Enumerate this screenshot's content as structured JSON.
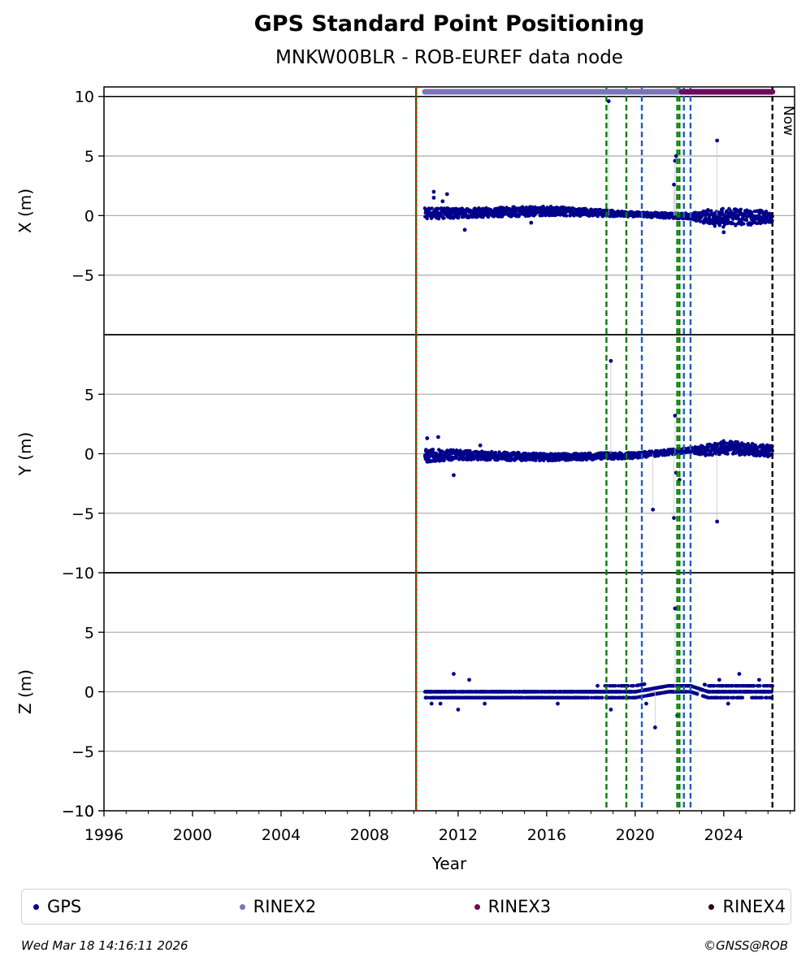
{
  "header": {
    "title": "GPS Standard Point Positioning",
    "subtitle": "MNKW00BLR - ROB-EUREF data node"
  },
  "footer": {
    "timestamp": "Wed Mar 18 14:16:11 2026",
    "copyright": "©GNSS@ROB"
  },
  "legend": {
    "items": [
      {
        "label": "GPS",
        "color": "#00008b"
      },
      {
        "label": "RINEX2",
        "color": "#7a74b8"
      },
      {
        "label": "RINEX3",
        "color": "#6b0a5e"
      },
      {
        "label": "RINEX4",
        "color": "#2a0520"
      }
    ]
  },
  "chart_data": {
    "type": "scatter",
    "xlabel": "Year",
    "xlim": [
      1996,
      2027.2
    ],
    "x_ticks": [
      1996,
      2000,
      2004,
      2008,
      2012,
      2016,
      2020,
      2024
    ],
    "panels": [
      {
        "ylabel": "X (m)",
        "ylim": [
          -10,
          10.8
        ],
        "yticks": [
          10,
          5,
          0,
          -5
        ],
        "band_low": [
          [
            2010.5,
            -0.3
          ],
          [
            2012,
            -0.2
          ],
          [
            2016,
            0.0
          ],
          [
            2020,
            -0.1
          ],
          [
            2022.5,
            -0.3
          ],
          [
            2023.3,
            -0.8
          ],
          [
            2024,
            -1.0
          ],
          [
            2026.2,
            -0.6
          ]
        ],
        "band_high": [
          [
            2010.5,
            0.7
          ],
          [
            2012,
            0.6
          ],
          [
            2016,
            0.8
          ],
          [
            2020,
            0.3
          ],
          [
            2022.5,
            0.2
          ],
          [
            2023.3,
            0.5
          ],
          [
            2024,
            0.6
          ],
          [
            2026.2,
            0.4
          ]
        ],
        "outliers": [
          [
            2010.9,
            2.0
          ],
          [
            2010.9,
            1.5
          ],
          [
            2011.5,
            1.8
          ],
          [
            2011.3,
            1.2
          ],
          [
            2012.3,
            -1.2
          ],
          [
            2018.8,
            9.6
          ],
          [
            2021.8,
            4.6
          ],
          [
            2021.85,
            5.0
          ],
          [
            2021.75,
            2.6
          ],
          [
            2023.7,
            6.3
          ],
          [
            2024.0,
            -1.4
          ],
          [
            2015.3,
            -0.6
          ]
        ]
      },
      {
        "ylabel": "Y (m)",
        "ylim": [
          -10,
          10
        ],
        "yticks": [
          -10,
          5,
          0,
          -5
        ],
        "band_low": [
          [
            2010.5,
            -0.7
          ],
          [
            2012,
            -0.5
          ],
          [
            2016,
            -0.6
          ],
          [
            2020,
            -0.4
          ],
          [
            2022.5,
            0.1
          ],
          [
            2023.3,
            -0.2
          ],
          [
            2024,
            0.0
          ],
          [
            2026.2,
            -0.3
          ]
        ],
        "band_high": [
          [
            2010.5,
            0.4
          ],
          [
            2012,
            0.3
          ],
          [
            2016,
            0.0
          ],
          [
            2020,
            0.1
          ],
          [
            2022.5,
            0.5
          ],
          [
            2023.3,
            0.8
          ],
          [
            2024,
            1.1
          ],
          [
            2026.2,
            0.7
          ]
        ],
        "outliers": [
          [
            2010.6,
            1.3
          ],
          [
            2011.1,
            1.4
          ],
          [
            2011.8,
            -1.8
          ],
          [
            2013,
            0.7
          ],
          [
            2018.9,
            7.8
          ],
          [
            2020.8,
            -4.7
          ],
          [
            2021.75,
            -5.4
          ],
          [
            2021.8,
            3.2
          ],
          [
            2021.85,
            -1.6
          ],
          [
            2022.0,
            -2.2
          ],
          [
            2023.7,
            -5.7
          ]
        ]
      },
      {
        "ylabel": "Z (m)",
        "ylim": [
          -10,
          10
        ],
        "yticks": [
          -10,
          5,
          0,
          -5
        ],
        "band_low": [
          [
            2010.5,
            -0.5
          ],
          [
            2012,
            -0.5
          ],
          [
            2016,
            -0.5
          ],
          [
            2020,
            -0.5
          ],
          [
            2021.5,
            0.0
          ],
          [
            2022.5,
            0.0
          ],
          [
            2023.3,
            -0.5
          ],
          [
            2026.2,
            -0.5
          ]
        ],
        "band_high": [
          [
            2010.5,
            0.0
          ],
          [
            2012,
            0.0
          ],
          [
            2016,
            0.0
          ],
          [
            2020,
            0.5
          ],
          [
            2021.5,
            0.5
          ],
          [
            2022.5,
            0.5
          ],
          [
            2023.3,
            0.5
          ],
          [
            2026.2,
            0.5
          ]
        ],
        "outliers": [
          [
            2010.8,
            -1.0
          ],
          [
            2011.2,
            -1.0
          ],
          [
            2011.8,
            1.5
          ],
          [
            2012.0,
            -1.5
          ],
          [
            2012.5,
            1.0
          ],
          [
            2013.2,
            -1.0
          ],
          [
            2016.5,
            -1.0
          ],
          [
            2018.3,
            0.5
          ],
          [
            2018.9,
            -1.5
          ],
          [
            2020.5,
            -1.0
          ],
          [
            2020.9,
            -3.0
          ],
          [
            2021.8,
            7.0
          ],
          [
            2021.9,
            -2.0
          ],
          [
            2023.8,
            1.0
          ],
          [
            2024.2,
            -1.0
          ],
          [
            2024.7,
            1.5
          ],
          [
            2025.6,
            1.0
          ]
        ]
      }
    ],
    "vlines": [
      {
        "x": 2010.1,
        "color": "#008000",
        "style": "solid"
      },
      {
        "x": 2010.1,
        "color": "#ff0000",
        "style": "dotted"
      },
      {
        "x": 2018.7,
        "color": "#008000",
        "style": "dashed"
      },
      {
        "x": 2019.6,
        "color": "#008000",
        "style": "dashed"
      },
      {
        "x": 2020.3,
        "color": "#1f5fbf",
        "style": "dashed"
      },
      {
        "x": 2021.9,
        "color": "#008000",
        "style": "dashed"
      },
      {
        "x": 2022.0,
        "color": "#008000",
        "style": "dashed"
      },
      {
        "x": 2022.2,
        "color": "#1f5fbf",
        "style": "dashed"
      },
      {
        "x": 2022.5,
        "color": "#1f5fbf",
        "style": "dashed"
      },
      {
        "x": 2026.2,
        "color": "#000000",
        "style": "dashed"
      }
    ],
    "availability": [
      {
        "name": "RINEX2",
        "start": 2010.5,
        "end": 2022.1,
        "color": "#7a74b8"
      },
      {
        "name": "RINEX3",
        "start": 2022.1,
        "end": 2026.2,
        "color": "#6b0a5e"
      }
    ],
    "now_label": "Now",
    "now_x": 2026.2
  }
}
